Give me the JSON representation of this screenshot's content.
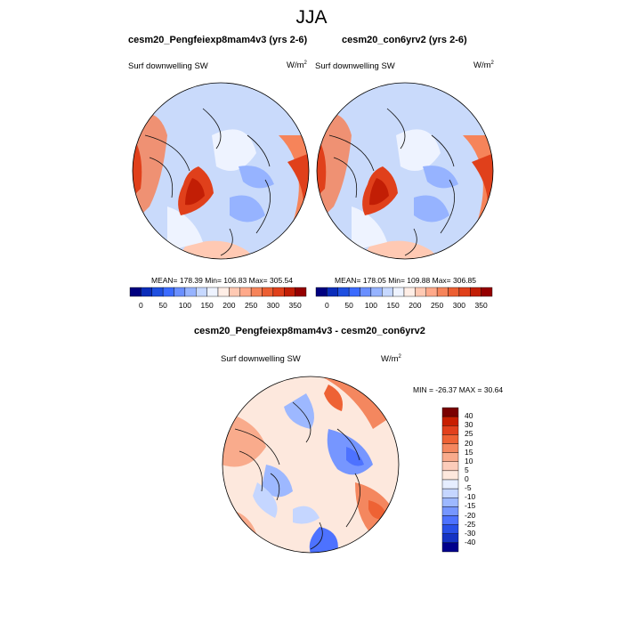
{
  "figure": {
    "title": "JJA"
  },
  "panels": [
    {
      "id": "left",
      "title": "cesm20_Pengfeiexp8mam4v3 (yrs 2-6)",
      "variable": "Surf downwelling SW",
      "units_base": "W/m",
      "units_exp": "2",
      "stats": "MEAN= 178.39  Min= 106.83  Max= 305.54"
    },
    {
      "id": "right",
      "title": "cesm20_con6yrv2 (yrs 2-6)",
      "variable": "Surf downwelling SW",
      "units_base": "W/m",
      "units_exp": "2",
      "stats": "MEAN= 178.05  Min= 109.88  Max= 306.85"
    },
    {
      "id": "diff",
      "title": "cesm20_Pengfeiexp8mam4v3 - cesm20_con6yrv2",
      "variable": "Surf downwelling SW",
      "units_base": "W/m",
      "units_exp": "2",
      "stats": "MIN = -26.37 MAX =  30.64"
    }
  ],
  "colorbar_top": {
    "ticks": [
      "0",
      "50",
      "100",
      "150",
      "200",
      "250",
      "300",
      "350"
    ],
    "colors": [
      "#00007f",
      "#0b2dba",
      "#1f4fe0",
      "#3b6bff",
      "#6a8fff",
      "#96b3ff",
      "#c6d8ff",
      "#eef3ff",
      "#ffeee6",
      "#ffc9b3",
      "#ffa98a",
      "#f6845a",
      "#ec5f33",
      "#e0401b",
      "#c21e05",
      "#950000"
    ]
  },
  "colorbar_diff": {
    "ticks": [
      "40",
      "30",
      "25",
      "20",
      "15",
      "10",
      "5",
      "0",
      "-5",
      "-10",
      "-15",
      "-20",
      "-25",
      "-30",
      "-40"
    ],
    "colors": [
      "#7a0000",
      "#c81e00",
      "#e2401c",
      "#ee6234",
      "#f4875f",
      "#f9ab8c",
      "#fcccba",
      "#fde8dd",
      "#e6eeff",
      "#c5d6ff",
      "#9db8ff",
      "#7696ff",
      "#4d72ff",
      "#2850e8",
      "#1433c4",
      "#00008c"
    ]
  },
  "colors": {
    "continent": "#111111",
    "greenland_top": "#d83c1c",
    "ocean_blue": "#c9dafb",
    "mid_latitude": "#f39c7f"
  }
}
